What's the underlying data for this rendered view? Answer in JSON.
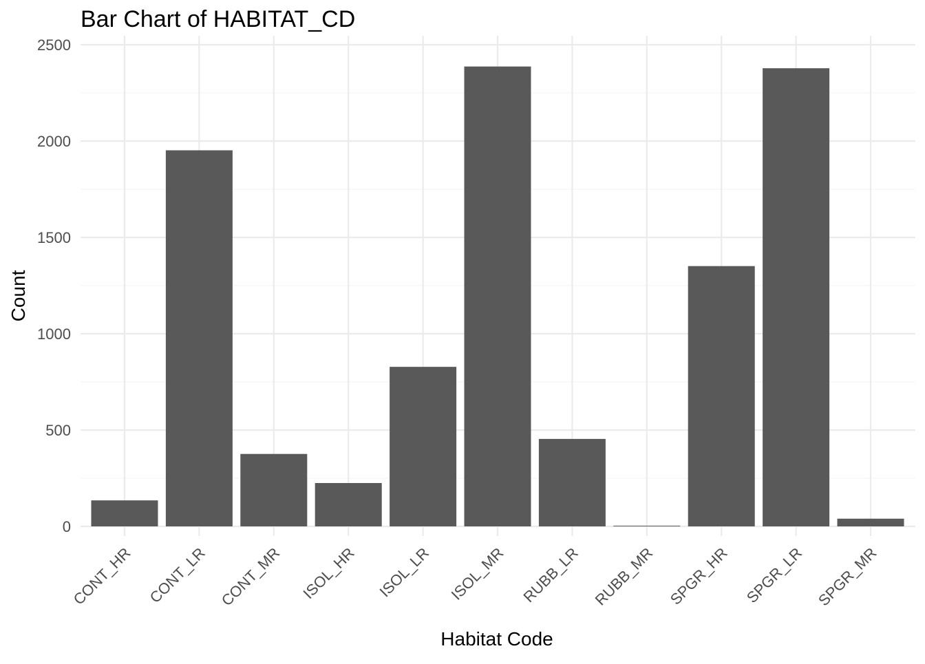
{
  "chart_data": {
    "type": "bar",
    "title": "Bar Chart of HABITAT_CD",
    "xlabel": "Habitat Code",
    "ylabel": "Count",
    "categories": [
      "CONT_HR",
      "CONT_LR",
      "CONT_MR",
      "ISOL_HR",
      "ISOL_LR",
      "ISOL_MR",
      "RUBB_LR",
      "RUBB_MR",
      "SPGR_HR",
      "SPGR_LR",
      "SPGR_MR"
    ],
    "values": [
      135,
      1952,
      376,
      225,
      828,
      2387,
      454,
      3,
      1351,
      2378,
      40
    ],
    "ylim": [
      0,
      2500
    ],
    "yticks": [
      0,
      500,
      1000,
      1500,
      2000,
      2500
    ],
    "grid": true,
    "bar_color": "#595959",
    "x_tick_rotation_deg": -45
  }
}
